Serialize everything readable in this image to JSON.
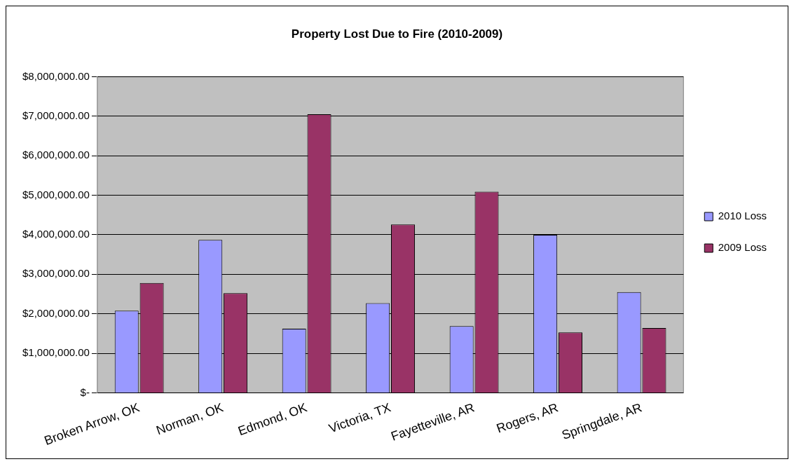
{
  "chart_data": {
    "type": "bar",
    "title": "Property Lost Due to Fire (2010-2009)",
    "categories": [
      "Broken Arrow, OK",
      "Norman, OK",
      "Edmond, OK",
      "Victoria, TX",
      "Fayetteville, AR",
      "Rogers, AR",
      "Springdale, AR"
    ],
    "series": [
      {
        "name": "2010 Loss",
        "color": "#9999ff",
        "values": [
          2080000,
          3870000,
          1620000,
          2270000,
          1690000,
          4000000,
          2550000
        ]
      },
      {
        "name": "2009 Loss",
        "color": "#993366",
        "values": [
          2780000,
          2520000,
          7050000,
          4260000,
          5090000,
          1530000,
          1640000
        ]
      }
    ],
    "ylim": [
      0,
      8000000
    ],
    "yticks": [
      {
        "value": 0,
        "label": "$-"
      },
      {
        "value": 1000000,
        "label": "$1,000,000.00"
      },
      {
        "value": 2000000,
        "label": "$2,000,000.00"
      },
      {
        "value": 3000000,
        "label": "$3,000,000.00"
      },
      {
        "value": 4000000,
        "label": "$4,000,000.00"
      },
      {
        "value": 5000000,
        "label": "$5,000,000.00"
      },
      {
        "value": 6000000,
        "label": "$6,000,000.00"
      },
      {
        "value": 7000000,
        "label": "$7,000,000.00"
      },
      {
        "value": 8000000,
        "label": "$8,000,000.00"
      }
    ],
    "grid": "y",
    "legend": "right"
  }
}
